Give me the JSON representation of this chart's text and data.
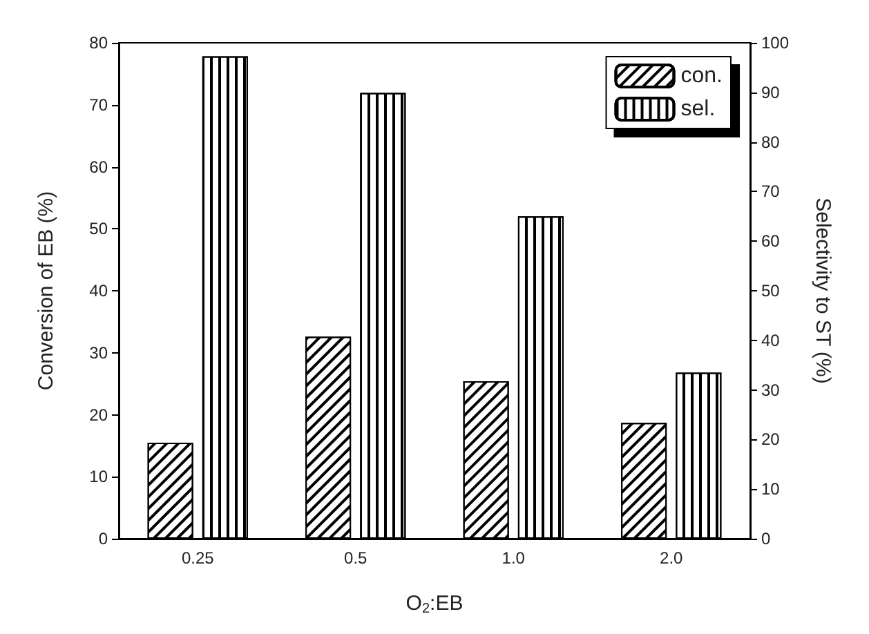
{
  "chart_data": {
    "type": "bar",
    "xlabel": "O$_{2}$:EB",
    "ylabel": "Conversion of EB (%)",
    "y2label": "Selectivity to ST (%)",
    "categories": [
      "0.25",
      "0.5",
      "1.0",
      "2.0"
    ],
    "series": [
      {
        "name": "con.",
        "color": "#ffffff",
        "values": [
          15.5,
          32.6,
          25.4,
          18.7
        ]
      },
      {
        "name": "sel.",
        "color": "#ffffff",
        "axis": "y2",
        "values": [
          97.3,
          89.9,
          65.0,
          33.5
        ]
      }
    ],
    "ylim": [
      0,
      80
    ],
    "yticks": [
      0,
      10,
      20,
      30,
      40,
      50,
      60,
      70,
      80
    ],
    "y2lim": [
      0,
      100
    ],
    "y2ticks": [
      0,
      10,
      20,
      30,
      40,
      50,
      60,
      70,
      80,
      90,
      100
    ],
    "grid": false,
    "legend": "top right"
  }
}
